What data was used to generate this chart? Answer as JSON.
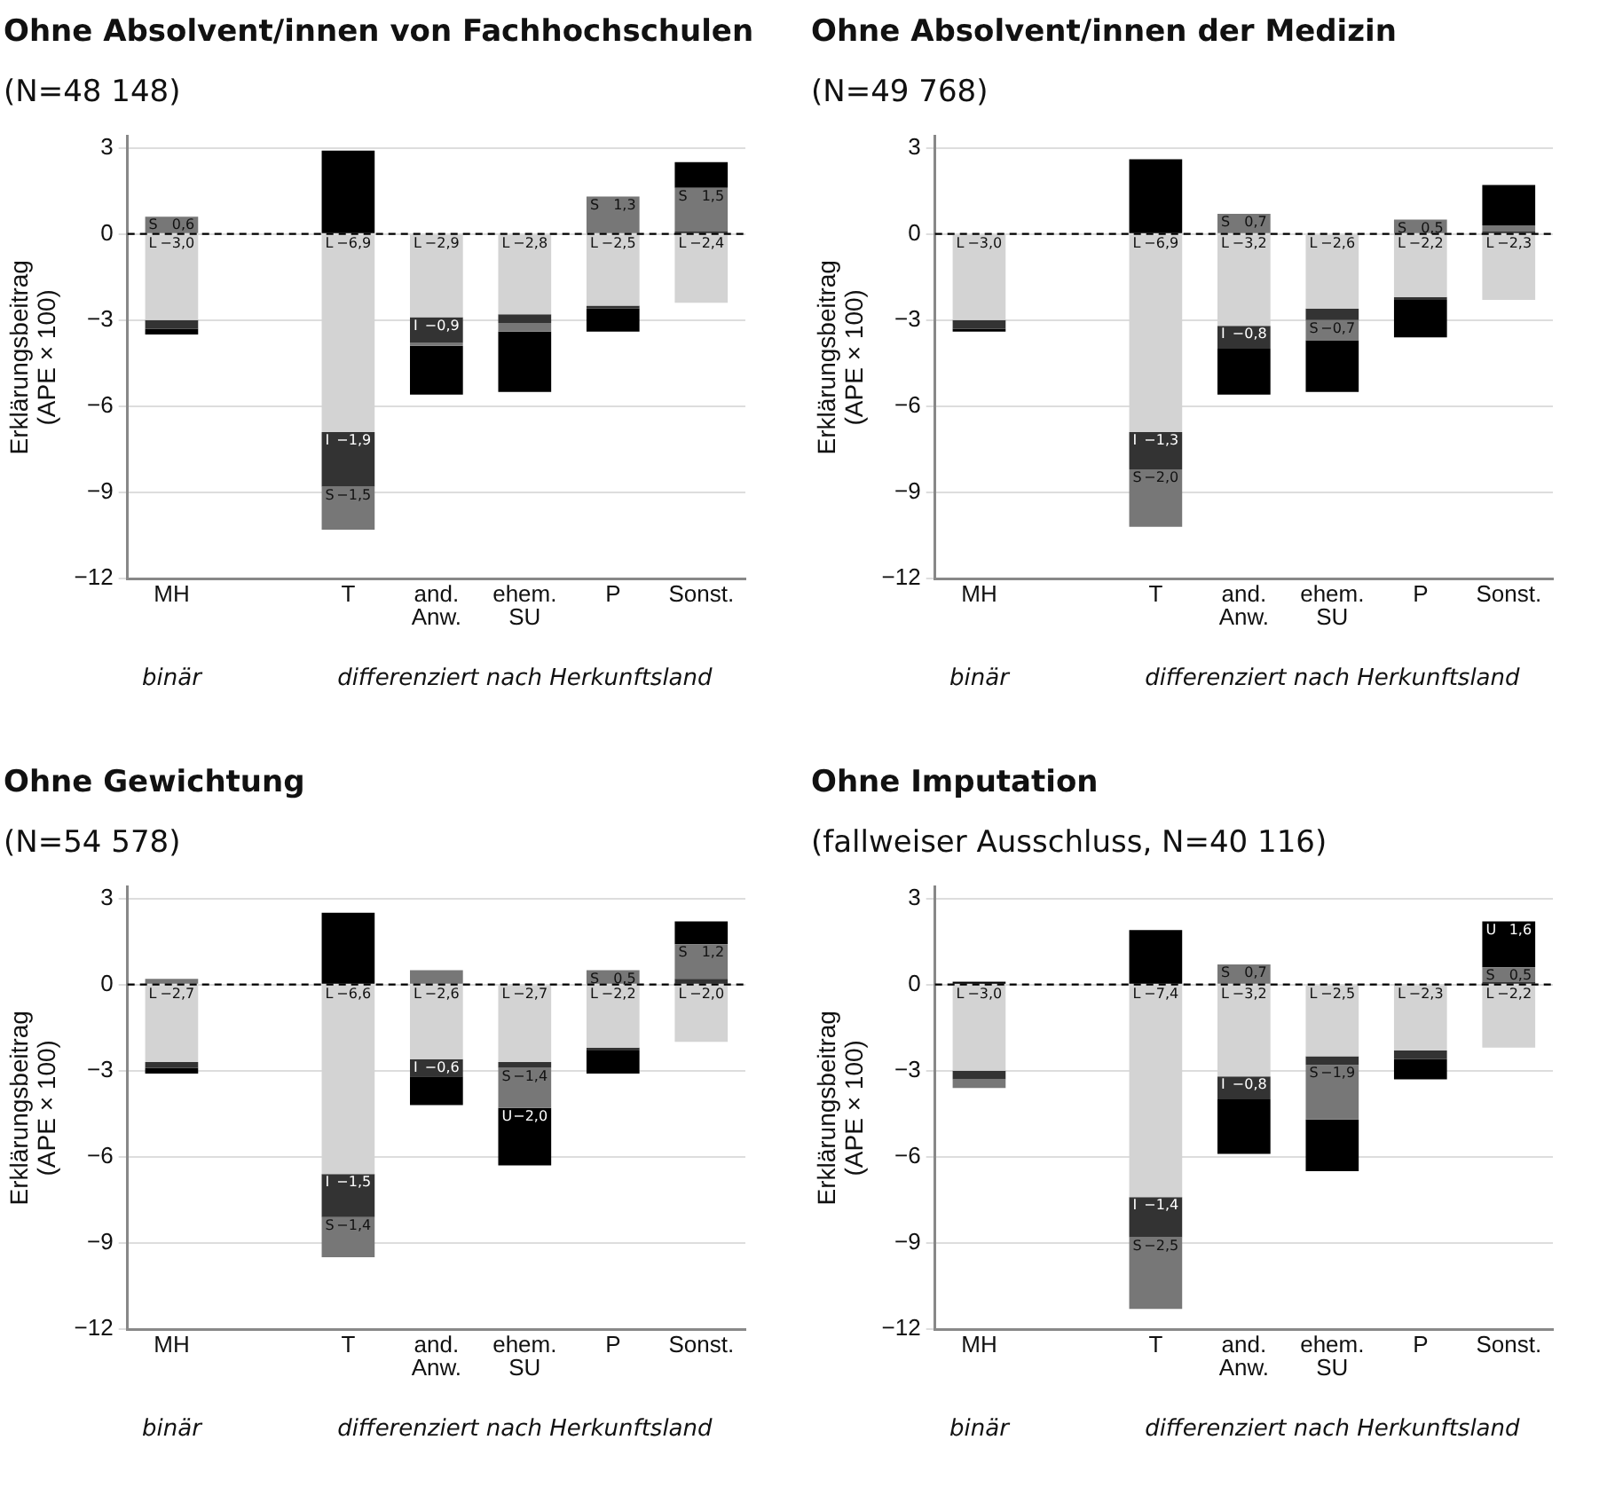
{
  "chart_data": [
    {
      "type": "bar",
      "stacked": true,
      "title": "Ohne Absolvent/innen von Fachhochschulen",
      "subtitle": "(N=48 148)",
      "ylabel": "Erklärungsbeitrag (APE × 100)",
      "categories": [
        "MH",
        null,
        "T",
        "and. Anw.",
        "ehem. SU",
        "P",
        "Sonst."
      ],
      "ylim": [
        -12,
        3.4
      ],
      "yticks": [
        {
          "value": 3,
          "label": "3"
        },
        {
          "value": 0,
          "label": "0"
        },
        {
          "value": -3,
          "label": "−3"
        },
        {
          "value": -6,
          "label": "−6"
        },
        {
          "value": -9,
          "label": "−9"
        },
        {
          "value": -12,
          "label": "−12"
        }
      ],
      "grid": "y",
      "legend": false,
      "ref_lines": [
        {
          "axis": "y",
          "value": 0,
          "line_style": "dashed",
          "color": "#000000"
        }
      ],
      "annotations": [
        "binär",
        "differenziert nach Herkunftsland"
      ],
      "series": [
        {
          "name": "L",
          "color": "#d3d3d3",
          "values": [
            -3.0,
            null,
            -6.9,
            -2.9,
            -2.8,
            -2.5,
            -2.4
          ],
          "value_labels": [
            "−3,0",
            null,
            "−6,9",
            "−2,9",
            "−2,8",
            "−2,5",
            "−2,4"
          ]
        },
        {
          "name": "I",
          "color": "#333333",
          "values": [
            -0.3,
            null,
            -1.9,
            -0.9,
            -0.3,
            -0.1,
            0.1
          ],
          "value_labels": [
            null,
            null,
            "−1,9",
            "−0,9",
            null,
            null,
            null
          ]
        },
        {
          "name": "S",
          "color": "#777777",
          "values": [
            0.6,
            null,
            -1.5,
            -0.1,
            -0.3,
            1.3,
            1.5
          ],
          "value_labels": [
            "0,6",
            null,
            "−1,5",
            null,
            null,
            "1,3",
            "1,5"
          ]
        },
        {
          "color": "#000000",
          "values": [
            -0.2,
            null,
            2.9,
            -1.7,
            -2.1,
            -0.8,
            0.9
          ],
          "value_labels": [
            null,
            null,
            null,
            null,
            null,
            null,
            null
          ]
        }
      ]
    },
    {
      "type": "bar",
      "stacked": true,
      "title": "Ohne Absolvent/innen der Medizin",
      "subtitle": "(N=49 768)",
      "ylabel": "Erklärungsbeitrag (APE × 100)",
      "categories": [
        "MH",
        null,
        "T",
        "and. Anw.",
        "ehem. SU",
        "P",
        "Sonst."
      ],
      "ylim": [
        -12,
        3.4
      ],
      "yticks": [
        {
          "value": 3,
          "label": "3"
        },
        {
          "value": 0,
          "label": "0"
        },
        {
          "value": -3,
          "label": "−3"
        },
        {
          "value": -6,
          "label": "−6"
        },
        {
          "value": -9,
          "label": "−9"
        },
        {
          "value": -12,
          "label": "−12"
        }
      ],
      "grid": "y",
      "legend": false,
      "ref_lines": [
        {
          "axis": "y",
          "value": 0,
          "line_style": "dashed",
          "color": "#000000"
        }
      ],
      "annotations": [
        "binär",
        "differenziert nach Herkunftsland"
      ],
      "series": [
        {
          "name": "L",
          "color": "#d3d3d3",
          "values": [
            -3.0,
            null,
            -6.9,
            -3.2,
            -2.6,
            -2.2,
            -2.3
          ],
          "value_labels": [
            "−3,0",
            null,
            "−6,9",
            "−3,2",
            "−2,6",
            "−2,2",
            "−2,3"
          ]
        },
        {
          "name": "I",
          "color": "#333333",
          "values": [
            -0.3,
            null,
            -1.3,
            -0.8,
            -0.4,
            -0.1,
            0.1
          ],
          "value_labels": [
            null,
            null,
            "−1,3",
            "−0,8",
            null,
            null,
            null
          ]
        },
        {
          "name": "S",
          "color": "#777777",
          "values": [
            null,
            null,
            -2.0,
            0.7,
            -0.7,
            0.5,
            0.2
          ],
          "value_labels": [
            null,
            null,
            "−2,0",
            "0,7",
            "−0,7",
            "0,5",
            null
          ]
        },
        {
          "color": "#000000",
          "values": [
            -0.1,
            null,
            2.6,
            -1.6,
            -1.8,
            -1.3,
            1.4
          ],
          "value_labels": [
            null,
            null,
            null,
            null,
            null,
            null,
            null
          ]
        }
      ]
    },
    {
      "type": "bar",
      "stacked": true,
      "title": "Ohne Gewichtung",
      "subtitle": "(N=54 578)",
      "ylabel": "Erklärungsbeitrag (APE × 100)",
      "categories": [
        "MH",
        null,
        "T",
        "and. Anw.",
        "ehem. SU",
        "P",
        "Sonst."
      ],
      "ylim": [
        -12,
        3.4
      ],
      "yticks": [
        {
          "value": 3,
          "label": "3"
        },
        {
          "value": 0,
          "label": "0"
        },
        {
          "value": -3,
          "label": "−3"
        },
        {
          "value": -6,
          "label": "−6"
        },
        {
          "value": -9,
          "label": "−9"
        },
        {
          "value": -12,
          "label": "−12"
        }
      ],
      "grid": "y",
      "legend": false,
      "ref_lines": [
        {
          "axis": "y",
          "value": 0,
          "line_style": "dashed",
          "color": "#000000"
        }
      ],
      "annotations": [
        "binär",
        "differenziert nach Herkunftsland"
      ],
      "series": [
        {
          "name": "L",
          "color": "#d3d3d3",
          "values": [
            -2.7,
            null,
            -6.6,
            -2.6,
            -2.7,
            -2.2,
            -2.0
          ],
          "value_labels": [
            "−2,7",
            null,
            "−6,6",
            "−2,6",
            "−2,7",
            "−2,2",
            "−2,0"
          ]
        },
        {
          "name": "I",
          "color": "#333333",
          "values": [
            -0.2,
            null,
            -1.5,
            -0.6,
            -0.2,
            -0.1,
            0.2
          ],
          "value_labels": [
            null,
            null,
            "−1,5",
            "−0,6",
            null,
            null,
            null
          ]
        },
        {
          "name": "S",
          "color": "#777777",
          "values": [
            0.2,
            null,
            -1.4,
            0.5,
            -1.4,
            0.5,
            1.2
          ],
          "value_labels": [
            null,
            null,
            "−1,4",
            null,
            "−1,4",
            "0,5",
            "1,2"
          ]
        },
        {
          "name": "U",
          "color": "#000000",
          "values": [
            -0.2,
            null,
            2.5,
            -1.0,
            -2.0,
            -0.8,
            0.8
          ],
          "value_labels": [
            null,
            null,
            null,
            null,
            "−2,0",
            null,
            null
          ]
        }
      ]
    },
    {
      "type": "bar",
      "stacked": true,
      "title": "Ohne Imputation",
      "subtitle": "(fallweiser Ausschluss, N=40 116)",
      "ylabel": "Erklärungsbeitrag (APE × 100)",
      "categories": [
        "MH",
        null,
        "T",
        "and. Anw.",
        "ehem. SU",
        "P",
        "Sonst."
      ],
      "ylim": [
        -12,
        3.4
      ],
      "yticks": [
        {
          "value": 3,
          "label": "3"
        },
        {
          "value": 0,
          "label": "0"
        },
        {
          "value": -3,
          "label": "−3"
        },
        {
          "value": -6,
          "label": "−6"
        },
        {
          "value": -9,
          "label": "−9"
        },
        {
          "value": -12,
          "label": "−12"
        }
      ],
      "grid": "y",
      "legend": false,
      "ref_lines": [
        {
          "axis": "y",
          "value": 0,
          "line_style": "dashed",
          "color": "#000000"
        }
      ],
      "annotations": [
        "binär",
        "differenziert nach Herkunftsland"
      ],
      "series": [
        {
          "name": "L",
          "color": "#d3d3d3",
          "values": [
            -3.0,
            null,
            -7.4,
            -3.2,
            -2.5,
            -2.3,
            -2.2
          ],
          "value_labels": [
            "−3,0",
            null,
            "−7,4",
            "−3,2",
            "−2,5",
            "−2,3",
            "−2,2"
          ]
        },
        {
          "name": "I",
          "color": "#333333",
          "values": [
            -0.3,
            null,
            -1.4,
            -0.8,
            -0.3,
            -0.3,
            0.1
          ],
          "value_labels": [
            null,
            null,
            "−1,4",
            "−0,8",
            null,
            null,
            null
          ]
        },
        {
          "name": "S",
          "color": "#777777",
          "values": [
            -0.3,
            null,
            -2.5,
            0.7,
            -1.9,
            null,
            0.5
          ],
          "value_labels": [
            null,
            null,
            "−2,5",
            "0,7",
            "−1,9",
            null,
            "0,5"
          ]
        },
        {
          "name": "U",
          "color": "#000000",
          "values": [
            0.1,
            null,
            1.9,
            -1.9,
            -1.8,
            -0.7,
            1.6
          ],
          "value_labels": [
            null,
            null,
            null,
            null,
            null,
            null,
            "1,6"
          ]
        }
      ]
    }
  ]
}
